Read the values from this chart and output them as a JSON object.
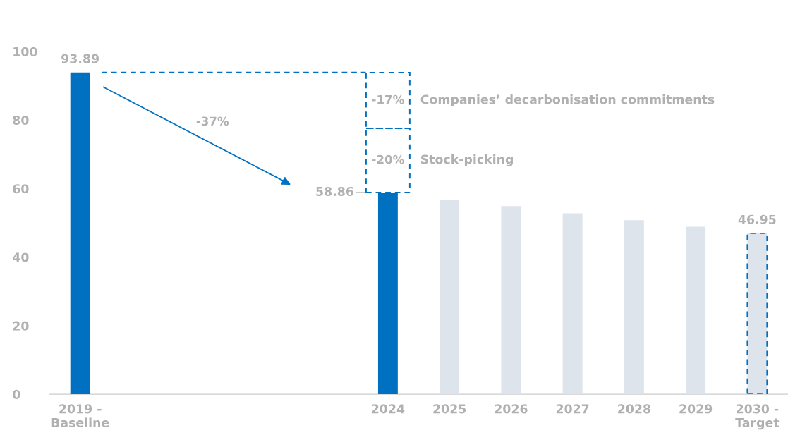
{
  "chart_data": {
    "type": "bar",
    "stacked": true,
    "categories": [
      "2019 -\nBaseline",
      null,
      null,
      null,
      null,
      "2024",
      "2025",
      "2026",
      "2027",
      "2028",
      "2029",
      "2030 -\nTarget"
    ],
    "series": [
      {
        "colors": [
          "#0070c0",
          null,
          null,
          null,
          null,
          "#0070c0",
          "#dde4ec",
          "#dde4ec",
          "#dde4ec",
          "#dde4ec",
          "#dde4ec",
          null
        ],
        "values": [
          93.89,
          null,
          null,
          null,
          null,
          58.86,
          56.7,
          54.9,
          52.8,
          50.8,
          48.9,
          null
        ],
        "value_labels": [
          "93.89",
          null,
          null,
          null,
          null,
          "58.86",
          null,
          null,
          null,
          null,
          null,
          null
        ]
      },
      {
        "color": "#dde4ec",
        "line_style": "dashed",
        "values": [
          null,
          null,
          null,
          null,
          null,
          null,
          null,
          null,
          null,
          null,
          null,
          46.95
        ],
        "value_labels": [
          null,
          null,
          null,
          null,
          null,
          null,
          null,
          null,
          null,
          null,
          null,
          "46.95"
        ]
      },
      {
        "name": "Stock-picking",
        "color": "#ffffff",
        "line_style": "dashed",
        "values": [
          null,
          null,
          null,
          null,
          null,
          18.7,
          null,
          null,
          null,
          null,
          null,
          null
        ]
      },
      {
        "name": "Companies’ decarbonisation commitments",
        "color": "#ffffff",
        "line_style": "dashed",
        "values": [
          null,
          null,
          null,
          null,
          null,
          16.3,
          null,
          null,
          null,
          null,
          null,
          null
        ]
      }
    ],
    "annotations": [
      "-20%",
      "-17%",
      "-37%"
    ],
    "ref_lines": [
      {
        "axis": "y",
        "value": 93.89,
        "color": "#0070c0",
        "line_style": "dashed"
      }
    ],
    "ylim": [
      0,
      100
    ],
    "yticks": [
      0,
      20,
      40,
      60,
      80,
      100
    ],
    "grid": false,
    "legend": false
  }
}
